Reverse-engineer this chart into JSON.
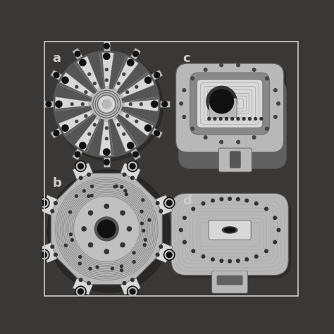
{
  "background_color": "#3a3836",
  "labels": [
    "a",
    "b",
    "c",
    "d"
  ],
  "label_color": "#cccccc",
  "label_fontsize": 13,
  "label_fontweight": "bold",
  "figsize": [
    4.74,
    4.74
  ],
  "dpi": 100,
  "metal_light": "#d8d8d8",
  "metal_mid": "#b8b8b8",
  "metal_dark": "#909090",
  "metal_shadow": "#606060",
  "black": "#111111",
  "dark_bg": "#282624"
}
